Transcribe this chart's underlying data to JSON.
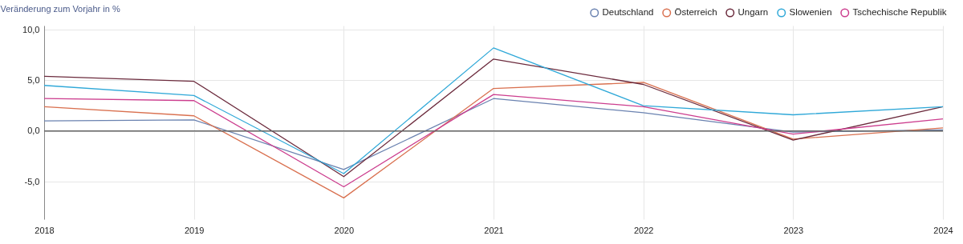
{
  "chart_data": {
    "type": "line",
    "ylabel": "Veränderung zum Vorjahr in %",
    "x": [
      2018,
      2019,
      2020,
      2021,
      2022,
      2023,
      2024
    ],
    "series": [
      {
        "name": "Deutschland",
        "color": "#6a82b0",
        "values": [
          1.0,
          1.1,
          -3.8,
          3.2,
          1.8,
          -0.1,
          0.1
        ]
      },
      {
        "name": "Österreich",
        "color": "#d9704f",
        "values": [
          2.4,
          1.5,
          -6.6,
          4.2,
          4.8,
          -0.8,
          0.3
        ]
      },
      {
        "name": "Ungarn",
        "color": "#6b2a3c",
        "values": [
          5.4,
          4.9,
          -4.5,
          7.1,
          4.6,
          -0.9,
          2.4
        ]
      },
      {
        "name": "Slowenien",
        "color": "#2fa8d8",
        "values": [
          4.5,
          3.5,
          -4.2,
          8.2,
          2.5,
          1.6,
          2.4
        ]
      },
      {
        "name": "Tschechische Republik",
        "color": "#cc3d8e",
        "values": [
          3.2,
          3.0,
          -5.5,
          3.6,
          2.4,
          -0.3,
          1.2
        ]
      }
    ],
    "xlim": [
      2018,
      2024
    ],
    "xticks": [
      2018,
      2019,
      2020,
      2021,
      2022,
      2023,
      2024
    ],
    "ylim": [
      -8.7,
      10.4
    ],
    "yticks": [
      {
        "value": -5,
        "label": "-5,0"
      },
      {
        "value": 0,
        "label": "0,0"
      },
      {
        "value": 5,
        "label": "5,0"
      },
      {
        "value": 10,
        "label": "10,0"
      }
    ],
    "ref_lines": [
      {
        "axis": "y",
        "value": 0,
        "color": "#666666"
      }
    ],
    "grid": true,
    "legend": "top right",
    "marker": "none",
    "line_style": "solid"
  }
}
